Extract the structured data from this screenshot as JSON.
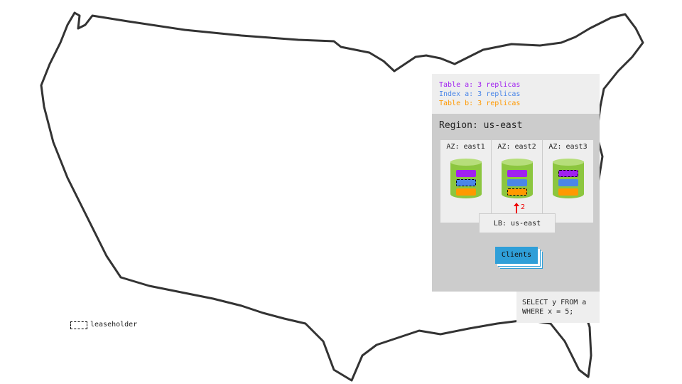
{
  "legend": [
    {
      "text": "Table a: 3 replicas",
      "color": "#a020f0"
    },
    {
      "text": "Index a: 3 replicas",
      "color": "#4a86e8"
    },
    {
      "text": "Table b: 3 replicas",
      "color": "#ff9900"
    }
  ],
  "region": {
    "title": "Region: us-east",
    "azs": [
      {
        "label": "AZ: east1",
        "leaseholder": "index-a"
      },
      {
        "label": "AZ: east2",
        "leaseholder": "table-b"
      },
      {
        "label": "AZ: east3",
        "leaseholder": "table-a"
      }
    ],
    "lb": "LB: us-east",
    "arrow_label": "2",
    "clients": "Clients"
  },
  "query": "SELECT y FROM a\nWHERE x = 5;",
  "leaseholder_legend": "leaseholder",
  "colors": {
    "node": "#8cc63f",
    "clients": "#2f9fd8",
    "arrow": "#e00000"
  }
}
